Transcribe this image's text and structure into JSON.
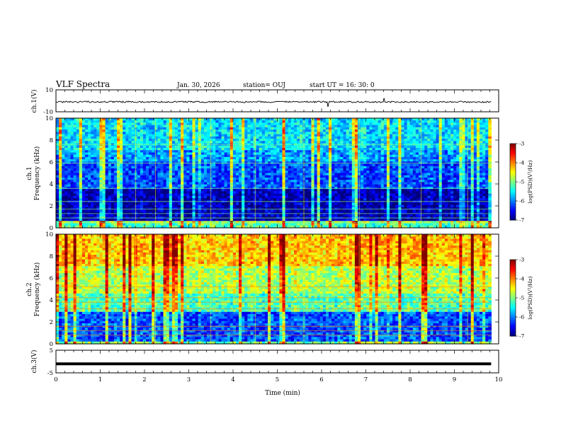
{
  "header": {
    "title": "VLF Spectra",
    "date": "Jan. 30, 2026",
    "station": "station= OUJ",
    "start": "start  UT =   16: 30: 0"
  },
  "chart_data": [
    {
      "type": "line",
      "panel": "ch.1 waveform",
      "ylabel": "ch.1(V)",
      "yticks": [
        "10",
        "-10"
      ],
      "ylim": [
        -10,
        10
      ],
      "series_level": -1,
      "xlim": [
        0,
        10
      ]
    },
    {
      "type": "heatmap",
      "panel": "ch.1 spectrogram",
      "ylabel_top": "ch.1",
      "ylabel": "Frequency (kHz)",
      "yticks": [
        "0",
        "2",
        "4",
        "6",
        "8",
        "10"
      ],
      "ylim": [
        0,
        10
      ],
      "xlim": [
        0,
        10
      ],
      "colorbar": {
        "label": "log(PSD)(V²/Hz)",
        "ticks": [
          "-3",
          "-4",
          "-5",
          "-6",
          "-7"
        ],
        "range": [
          -7,
          -3
        ]
      }
    },
    {
      "type": "heatmap",
      "panel": "ch.2 spectrogram",
      "ylabel_top": "ch.2",
      "ylabel": "Frequency (kHz)",
      "yticks": [
        "0",
        "2",
        "4",
        "6",
        "8",
        "10"
      ],
      "ylim": [
        0,
        10
      ],
      "xlim": [
        0,
        10
      ],
      "colorbar": {
        "label": "log(PSD)(V²/Hz)",
        "ticks": [
          "-3",
          "-4",
          "-5",
          "-6",
          "-7"
        ],
        "range": [
          -7,
          -3
        ]
      }
    },
    {
      "type": "line",
      "panel": "ch.3 waveform",
      "ylabel": "ch.3(V)",
      "yticks": [
        "5",
        "-5"
      ],
      "ylim": [
        -5,
        5
      ],
      "series_level": -1,
      "xlim": [
        0,
        10
      ],
      "xlabel": "Time (min)",
      "xticks": [
        "0",
        "1",
        "2",
        "3",
        "4",
        "5",
        "6",
        "7",
        "8",
        "9",
        "10"
      ]
    }
  ],
  "colors": {
    "cmap": [
      "#00007f",
      "#0000ff",
      "#0080ff",
      "#00ffff",
      "#80ff80",
      "#ffff00",
      "#ff8000",
      "#ff0000",
      "#7f0000"
    ],
    "axis": "#000000",
    "background": "#ffffff"
  }
}
